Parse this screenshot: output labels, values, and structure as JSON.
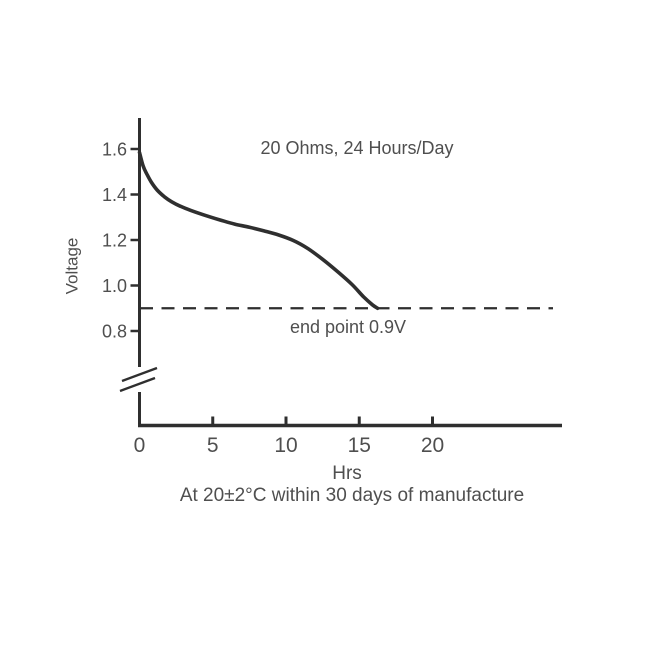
{
  "page": {
    "background": "#ffffff"
  },
  "chart_data": {
    "type": "line",
    "title": "20 Ohms, 24 Hours/Day",
    "xlabel": "Hrs",
    "ylabel": "Voltage",
    "caption": "At 20±2°C within 30 days of manufacture",
    "annotation_end_point": "end point 0.9V",
    "end_point_voltage": 0.9,
    "x_ticks": [
      0,
      5,
      10,
      15,
      20
    ],
    "y_ticks": [
      "1.6",
      "1.4",
      "1.2",
      "1.0",
      "0.8"
    ],
    "xlim": [
      0,
      29
    ],
    "ylim": [
      0.8,
      1.6
    ],
    "y_axis_break": true,
    "grid": false,
    "legend_position": "none",
    "series": [
      {
        "name": "discharge curve",
        "x": [
          0,
          0.25,
          0.5,
          0.8,
          1.2,
          1.7,
          2.2,
          2.8,
          3.5,
          4.5,
          5.5,
          6.5,
          7.5,
          8.5,
          9.5,
          10.5,
          11.5,
          12.5,
          13.5,
          14.5,
          15.3,
          15.9,
          16.25
        ],
        "y": [
          1.585,
          1.525,
          1.49,
          1.455,
          1.42,
          1.39,
          1.368,
          1.348,
          1.33,
          1.308,
          1.288,
          1.27,
          1.256,
          1.24,
          1.222,
          1.198,
          1.162,
          1.115,
          1.062,
          1.005,
          0.95,
          0.915,
          0.9
        ]
      }
    ],
    "colors": {
      "line": "#2f2f2f",
      "axis": "#2f2f2f",
      "text": "#4f4f4f",
      "background": "#ffffff"
    }
  }
}
